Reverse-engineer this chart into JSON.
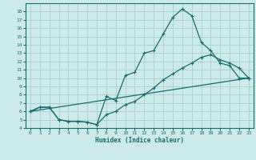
{
  "xlabel": "Humidex (Indice chaleur)",
  "bg_color": "#cceaea",
  "grid_color": "#aacccc",
  "line_color": "#1a6b6b",
  "xlim": [
    -0.5,
    23.5
  ],
  "ylim": [
    4,
    19
  ],
  "xticks": [
    0,
    1,
    2,
    3,
    4,
    5,
    6,
    7,
    8,
    9,
    10,
    11,
    12,
    13,
    14,
    15,
    16,
    17,
    18,
    19,
    20,
    21,
    22,
    23
  ],
  "yticks": [
    4,
    5,
    6,
    7,
    8,
    9,
    10,
    11,
    12,
    13,
    14,
    15,
    16,
    17,
    18
  ],
  "line1_x": [
    0,
    1,
    2,
    3,
    4,
    5,
    6,
    7,
    8,
    9,
    10,
    11,
    12,
    13,
    14,
    15,
    16,
    17,
    18,
    19,
    20,
    21,
    22,
    23
  ],
  "line1_y": [
    6.0,
    6.5,
    6.5,
    5.0,
    4.8,
    4.8,
    4.7,
    4.4,
    7.8,
    7.3,
    10.3,
    10.7,
    13.0,
    13.3,
    15.3,
    17.3,
    18.3,
    17.5,
    14.3,
    13.3,
    11.8,
    11.5,
    10.0,
    10.0
  ],
  "line2_x": [
    0,
    1,
    2,
    3,
    4,
    5,
    6,
    7,
    8,
    9,
    10,
    11,
    12,
    13,
    14,
    15,
    16,
    17,
    18,
    19,
    20,
    21,
    22,
    23
  ],
  "line2_y": [
    6.0,
    6.5,
    6.5,
    5.0,
    4.8,
    4.8,
    4.7,
    4.4,
    5.6,
    6.0,
    6.8,
    7.2,
    8.0,
    8.8,
    9.8,
    10.5,
    11.2,
    11.8,
    12.5,
    12.8,
    12.2,
    11.8,
    11.2,
    10.0
  ],
  "line3_x": [
    0,
    23
  ],
  "line3_y": [
    6.0,
    10.0
  ]
}
